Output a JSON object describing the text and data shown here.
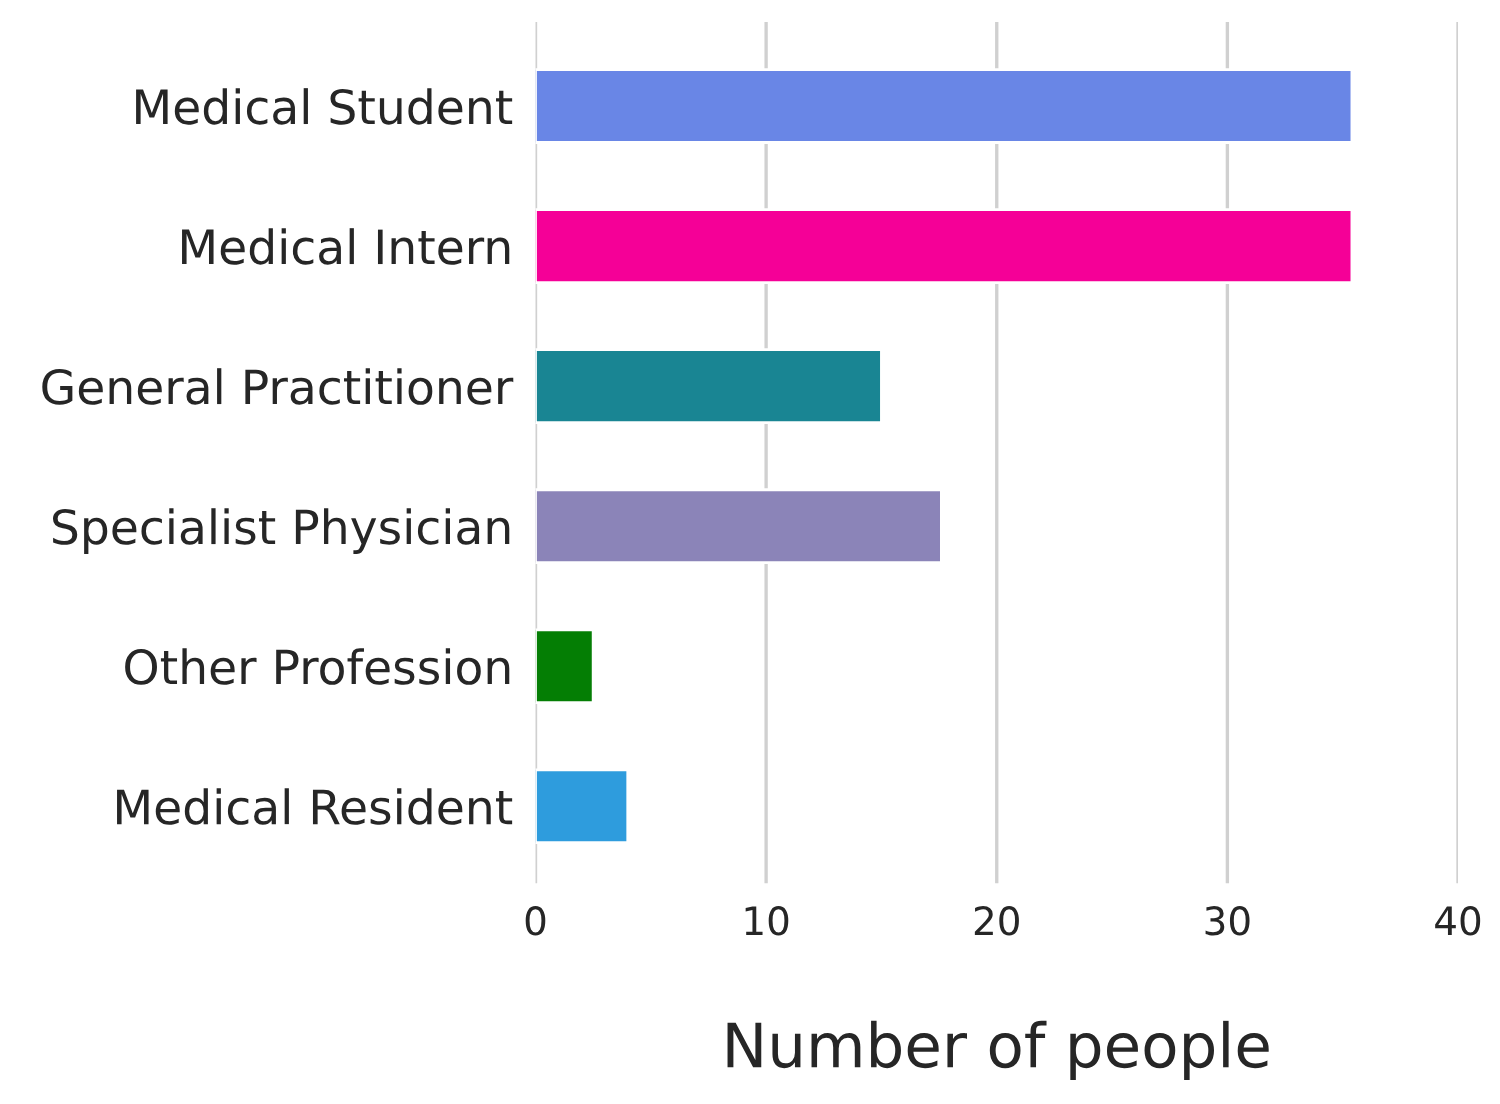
{
  "chart_data": {
    "type": "bar",
    "orientation": "horizontal",
    "xlabel": "Number of people",
    "categories": [
      "Medical Student",
      "Medical Intern",
      "General Practitioner",
      "Specialist Physician",
      "Other Profession",
      "Medical Resident"
    ],
    "values": [
      35.4,
      35.4,
      15,
      17.6,
      2.5,
      4
    ],
    "colors": [
      "#6986e6",
      "#f50097",
      "#198593",
      "#8b84b8",
      "#047e04",
      "#2e9cdd"
    ],
    "xlim": [
      0,
      40
    ],
    "xticks": [
      0,
      10,
      20,
      30,
      40
    ],
    "grid": "x"
  }
}
